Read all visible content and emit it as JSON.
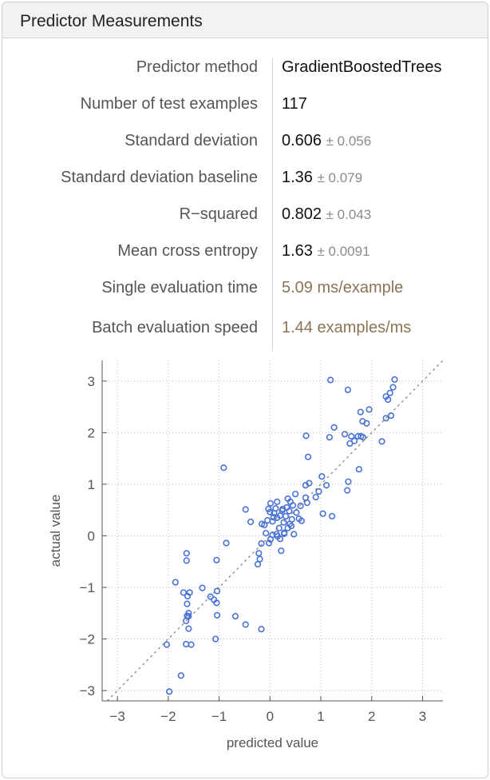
{
  "header": {
    "title": "Predictor Measurements"
  },
  "rows": [
    {
      "label": "Predictor method",
      "value": "GradientBoostedTrees",
      "err": ""
    },
    {
      "label": "Number of test examples",
      "value": "117",
      "err": ""
    },
    {
      "label": "Standard deviation",
      "value": "0.606",
      "err": "± 0.056"
    },
    {
      "label": "Standard deviation baseline",
      "value": "1.36",
      "err": "± 0.079"
    },
    {
      "label": "R−squared",
      "value": "0.802",
      "err": "± 0.043"
    },
    {
      "label": "Mean cross entropy",
      "value": "1.63",
      "err": "± 0.0091"
    },
    {
      "label": "Single evaluation time",
      "value": "5.09 ms/example",
      "err": ""
    },
    {
      "label": "Batch evaluation speed",
      "value": "1.44 examples/ms",
      "err": ""
    }
  ],
  "colors": {
    "point": "#4a72d4",
    "diagonal": "#999999",
    "grid": "#bbbbbb",
    "timing": "#8b7355"
  },
  "chart_data": {
    "type": "scatter",
    "xlabel": "predicted value",
    "ylabel": "actual value",
    "xlim": [
      -3.3,
      3.4
    ],
    "ylim": [
      -3.2,
      3.4
    ],
    "xticks": [
      "−3",
      "−2",
      "−1",
      "0",
      "1",
      "2",
      "3"
    ],
    "yticks": [
      "−3",
      "−2",
      "−1",
      "0",
      "1",
      "2",
      "3"
    ],
    "grid": true,
    "diagonal": true,
    "points": [
      [
        1.19,
        3.02
      ],
      [
        1.53,
        2.83
      ],
      [
        2.45,
        3.03
      ],
      [
        2.42,
        2.88
      ],
      [
        2.36,
        2.77
      ],
      [
        2.32,
        2.64
      ],
      [
        2.28,
        2.7
      ],
      [
        2.28,
        2.28
      ],
      [
        2.38,
        2.33
      ],
      [
        1.95,
        2.45
      ],
      [
        1.78,
        2.4
      ],
      [
        1.82,
        2.22
      ],
      [
        1.9,
        2.18
      ],
      [
        1.26,
        2.1
      ],
      [
        1.47,
        1.97
      ],
      [
        1.6,
        1.93
      ],
      [
        1.57,
        1.79
      ],
      [
        1.66,
        1.84
      ],
      [
        1.73,
        1.93
      ],
      [
        1.79,
        1.93
      ],
      [
        1.83,
        1.91
      ],
      [
        1.17,
        1.91
      ],
      [
        0.71,
        1.94
      ],
      [
        2.2,
        1.83
      ],
      [
        0.75,
        1.53
      ],
      [
        1.75,
        1.29
      ],
      [
        1.54,
        1.05
      ],
      [
        1.02,
        1.15
      ],
      [
        1.52,
        0.88
      ],
      [
        1.11,
        0.98
      ],
      [
        0.7,
        0.98
      ],
      [
        0.77,
        1.02
      ],
      [
        0.96,
        0.86
      ],
      [
        0.7,
        0.74
      ],
      [
        0.5,
        0.81
      ],
      [
        0.35,
        0.72
      ],
      [
        0.14,
        0.66
      ],
      [
        0.01,
        0.63
      ],
      [
        0.11,
        0.53
      ],
      [
        0.08,
        0.44
      ],
      [
        0.0,
        0.46
      ],
      [
        -0.03,
        0.52
      ],
      [
        0.24,
        0.49
      ],
      [
        0.38,
        0.48
      ],
      [
        0.45,
        0.59
      ],
      [
        0.73,
        0.64
      ],
      [
        1.04,
        0.43
      ],
      [
        1.22,
        0.38
      ],
      [
        0.62,
        0.29
      ],
      [
        -0.48,
        0.51
      ],
      [
        -0.38,
        0.27
      ],
      [
        -0.16,
        0.23
      ],
      [
        -0.11,
        0.21
      ],
      [
        0.07,
        0.36
      ],
      [
        0.14,
        0.35
      ],
      [
        0.2,
        0.39
      ],
      [
        0.31,
        0.38
      ],
      [
        0.27,
        0.26
      ],
      [
        0.39,
        0.23
      ],
      [
        0.43,
        0.32
      ],
      [
        0.35,
        0.15
      ],
      [
        0.28,
        0.06
      ],
      [
        0.15,
        -0.01
      ],
      [
        0.05,
        0.02
      ],
      [
        0.01,
        -0.07
      ],
      [
        0.13,
        0.03
      ],
      [
        0.28,
        0.04
      ],
      [
        0.47,
        0.03
      ],
      [
        0.2,
        -0.06
      ],
      [
        -0.02,
        -0.14
      ],
      [
        -0.17,
        -0.15
      ],
      [
        -0.22,
        -0.34
      ],
      [
        0.22,
        -0.29
      ],
      [
        -0.2,
        -0.45
      ],
      [
        -0.24,
        -0.55
      ],
      [
        -0.86,
        -0.14
      ],
      [
        -1.05,
        -0.47
      ],
      [
        -0.91,
        1.32
      ],
      [
        -1.64,
        -0.34
      ],
      [
        -1.64,
        -0.48
      ],
      [
        -1.86,
        -0.9
      ],
      [
        -1.33,
        -1.01
      ],
      [
        -1.58,
        -1.1
      ],
      [
        -1.62,
        -1.17
      ],
      [
        -1.63,
        -1.32
      ],
      [
        -1.6,
        -1.5
      ],
      [
        -1.63,
        -1.55
      ],
      [
        -1.6,
        -1.56
      ],
      [
        -1.65,
        -1.65
      ],
      [
        -1.6,
        -1.8
      ],
      [
        -1.04,
        -1.07
      ],
      [
        -1.1,
        -1.24
      ],
      [
        -1.17,
        -1.18
      ],
      [
        -1.05,
        -1.3
      ],
      [
        -1.04,
        -1.54
      ],
      [
        -0.68,
        -1.56
      ],
      [
        -0.48,
        -1.72
      ],
      [
        -0.17,
        -1.81
      ],
      [
        -1.07,
        -2.0
      ],
      [
        -1.65,
        -2.1
      ],
      [
        -1.55,
        -2.11
      ],
      [
        -2.03,
        -2.11
      ],
      [
        -1.75,
        -2.71
      ],
      [
        -1.98,
        -3.02
      ],
      [
        -1.7,
        -1.1
      ],
      [
        0.52,
        0.45
      ],
      [
        0.6,
        0.58
      ],
      [
        0.9,
        0.75
      ],
      [
        0.33,
        0.55
      ],
      [
        -0.08,
        0.05
      ],
      [
        0.18,
        0.15
      ],
      [
        0.05,
        0.28
      ],
      [
        0.4,
        0.66
      ],
      [
        0.57,
        0.33
      ],
      [
        -0.05,
        0.3
      ],
      [
        0.25,
        0.52
      ],
      [
        0.42,
        0.19
      ]
    ]
  }
}
